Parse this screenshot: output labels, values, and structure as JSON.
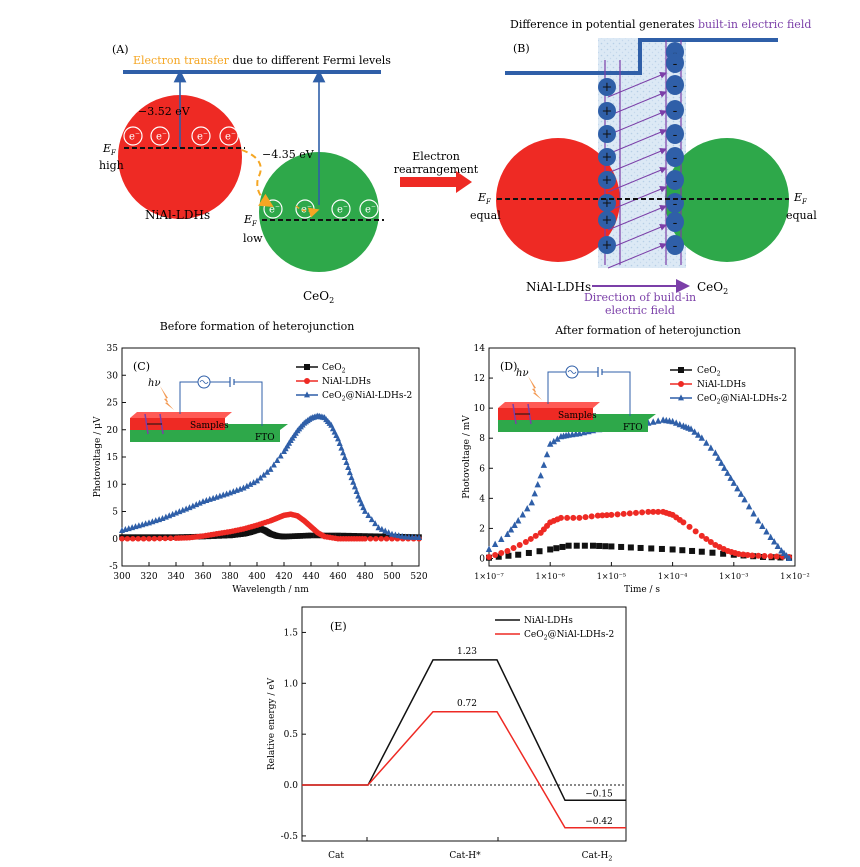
{
  "panels": {
    "A": {
      "tag": "(A)",
      "heading_orange": "Electron transfer",
      "heading_rest": " due to different Fermi levels",
      "nial_energy": "−3.52 eV",
      "ceo2_energy": "−4.35 eV",
      "ef_symbol": "E",
      "ef_sub": "F",
      "high": "high",
      "low": "low",
      "electron": "e",
      "electron_sup": "−",
      "nial_label": "NiAl-LDHs",
      "ceo2_label_main": "CeO",
      "ceo2_label_sub": "2",
      "caption": "Before formation of heterojunction"
    },
    "arrow": {
      "line1": "Electron",
      "line2": "rearrangement"
    },
    "B": {
      "tag": "(B)",
      "heading_plain": "Difference in potential generates ",
      "heading_purple": "built-in electric field",
      "equal": "equal",
      "plus": "+",
      "minus": "-",
      "nial_label": "NiAl-LDHs",
      "ceo2_label_main": "CeO",
      "ceo2_label_sub": "2",
      "field_line1": "Direction of build-in",
      "field_line2": "electric field",
      "caption": "After formation of heterojunction"
    },
    "C": {
      "tag": "(C)",
      "hv": "hν",
      "samples": "Samples",
      "fto": "FTO",
      "legend": [
        {
          "main": "CeO",
          "sub": "2",
          "rest": ""
        },
        {
          "main": "NiAl-LDHs",
          "sub": "",
          "rest": ""
        },
        {
          "main": "CeO",
          "sub": "2",
          "rest": "@NiAl-LDHs-2"
        }
      ]
    },
    "D": {
      "tag": "(D)",
      "hv": "hν",
      "samples": "Samples",
      "fto": "FTO",
      "legend": [
        {
          "main": "CeO",
          "sub": "2",
          "rest": ""
        },
        {
          "main": "NiAl-LDHs",
          "sub": "",
          "rest": ""
        },
        {
          "main": "CeO",
          "sub": "2",
          "rest": "@NiAl-LDHs-2"
        }
      ]
    },
    "E": {
      "tag": "(E)",
      "legend": [
        {
          "main": "NiAl-LDHs",
          "sub": "",
          "rest": ""
        },
        {
          "main": "CeO",
          "sub": "2",
          "rest": "@NiAl-LDHs-2"
        }
      ],
      "cat_labels": [
        {
          "main": "Cat",
          "sub": ""
        },
        {
          "main": "Cat-H*",
          "sub": ""
        },
        {
          "main": "Cat-H",
          "sub": "2"
        }
      ]
    }
  },
  "colors": {
    "red": "#ee2a24",
    "green": "#2ea84a",
    "blue": "#2f5fa8",
    "orange": "#f5a623",
    "purple": "#7b3fa8",
    "black": "#111111",
    "stripe": "#dce9f5"
  },
  "chart_data": [
    {
      "panel": "C",
      "type": "scatter",
      "xlabel": "Wavelength / nm",
      "ylabel": "Photovoltage / μV",
      "xlim": [
        300,
        520
      ],
      "ylim": [
        -5,
        35
      ],
      "xticks": [
        300,
        320,
        340,
        360,
        380,
        400,
        420,
        440,
        460,
        480,
        500,
        520
      ],
      "yticks": [
        -5,
        0,
        5,
        10,
        15,
        20,
        25,
        30,
        35
      ],
      "series": [
        {
          "name": "CeO2",
          "color": "#111111",
          "marker": "square",
          "x": [
            300,
            320,
            340,
            360,
            380,
            390,
            395,
            400,
            403,
            406,
            410,
            415,
            420,
            430,
            440,
            460,
            480,
            500,
            520
          ],
          "y": [
            0.3,
            0.3,
            0.3,
            0.4,
            0.6,
            0.9,
            1.2,
            1.6,
            1.8,
            1.5,
            0.9,
            0.5,
            0.4,
            0.5,
            0.6,
            0.6,
            0.5,
            0.4,
            0.3
          ]
        },
        {
          "name": "NiAl-LDHs",
          "color": "#ee2a24",
          "marker": "circle",
          "x": [
            300,
            320,
            340,
            350,
            360,
            370,
            380,
            390,
            400,
            410,
            415,
            420,
            425,
            430,
            435,
            440,
            445,
            450,
            460,
            470,
            480,
            500,
            520
          ],
          "y": [
            0,
            0,
            0.1,
            0.2,
            0.5,
            0.9,
            1.3,
            1.8,
            2.5,
            3.3,
            3.8,
            4.3,
            4.5,
            4.2,
            3.3,
            2.2,
            1.1,
            0.4,
            0,
            0,
            0,
            0,
            0
          ]
        },
        {
          "name": "CeO2@NiAl-LDHs-2",
          "color": "#2f5fa8",
          "marker": "triangle",
          "x": [
            300,
            310,
            320,
            330,
            340,
            350,
            360,
            370,
            380,
            390,
            400,
            410,
            420,
            425,
            430,
            435,
            440,
            445,
            450,
            455,
            460,
            465,
            470,
            475,
            480,
            490,
            500,
            510,
            520
          ],
          "y": [
            1.5,
            2.2,
            2.9,
            3.7,
            4.7,
            5.7,
            6.8,
            7.6,
            8.4,
            9.3,
            10.6,
            12.7,
            16.0,
            18.0,
            19.8,
            21.2,
            22.1,
            22.5,
            22.2,
            20.8,
            18.3,
            14.9,
            11.2,
            7.8,
            5.0,
            2.0,
            0.8,
            0.3,
            0.2
          ]
        }
      ]
    },
    {
      "panel": "D",
      "type": "scatter",
      "xlabel": "Time / s",
      "ylabel": "Photovoltage / mV",
      "xscale": "log",
      "xlim": [
        1e-07,
        0.01
      ],
      "ylim": [
        -0.5,
        14
      ],
      "xticks": [
        "1×10⁻⁷",
        "1×10⁻⁶",
        "1×10⁻⁵",
        "1×10⁻⁴",
        "1×10⁻³",
        "1×10⁻²"
      ],
      "yticks": [
        0,
        2,
        4,
        6,
        8,
        10,
        12,
        14
      ],
      "series": [
        {
          "name": "CeO2",
          "color": "#111111",
          "marker": "square",
          "x": [
            1e-07,
            3e-07,
            1e-06,
            2e-06,
            5e-06,
            1e-05,
            3e-05,
            0.0001,
            0.0003,
            0.001,
            0.003,
            0.008
          ],
          "y": [
            0.05,
            0.25,
            0.6,
            0.85,
            0.85,
            0.8,
            0.7,
            0.6,
            0.45,
            0.25,
            0.1,
            0.05
          ]
        },
        {
          "name": "NiAl-LDHs",
          "color": "#ee2a24",
          "marker": "circle",
          "x": [
            1e-07,
            2e-07,
            4e-07,
            7e-07,
            1e-06,
            1.5e-06,
            3e-06,
            6e-06,
            1e-05,
            2e-05,
            4e-05,
            7e-05,
            0.0001,
            0.00015,
            0.0003,
            0.0005,
            0.0008,
            0.0012,
            0.002,
            0.004,
            0.008
          ],
          "y": [
            0.1,
            0.5,
            1.1,
            1.7,
            2.4,
            2.7,
            2.7,
            2.85,
            2.9,
            3.0,
            3.1,
            3.1,
            2.9,
            2.4,
            1.5,
            0.9,
            0.5,
            0.3,
            0.2,
            0.15,
            0.1
          ]
        },
        {
          "name": "CeO2@NiAl-LDHs-2",
          "color": "#2f5fa8",
          "marker": "triangle",
          "x": [
            1e-07,
            2e-07,
            3e-07,
            5e-07,
            7e-07,
            1e-06,
            1.5e-06,
            2e-06,
            3e-06,
            5e-06,
            1e-05,
            2e-05,
            4e-05,
            7e-05,
            0.0001,
            0.00015,
            0.0002,
            0.0003,
            0.0005,
            0.0007,
            0.001,
            0.0015,
            0.0025,
            0.004,
            0.006,
            0.008
          ],
          "y": [
            0.6,
            1.6,
            2.5,
            3.7,
            5.5,
            7.6,
            8.1,
            8.2,
            8.3,
            8.5,
            8.7,
            8.8,
            9.0,
            9.2,
            9.1,
            8.8,
            8.6,
            8.0,
            7.0,
            6.0,
            5.0,
            3.9,
            2.5,
            1.4,
            0.5,
            0.0
          ]
        }
      ]
    },
    {
      "panel": "E",
      "type": "line",
      "ylabel": "Relative energy / eV",
      "categories": [
        "Cat",
        "Cat-H*",
        "Cat-H2"
      ],
      "ylim": [
        -0.55,
        1.75
      ],
      "yticks": [
        -0.5,
        0.0,
        0.5,
        1.0,
        1.5
      ],
      "baseline": 0.0,
      "series": [
        {
          "name": "NiAl-LDHs",
          "color": "#111111",
          "values": [
            0.0,
            1.23,
            -0.15
          ],
          "labels": [
            "",
            "1.23",
            "−0.15"
          ]
        },
        {
          "name": "CeO2@NiAl-LDHs-2",
          "color": "#ee2a24",
          "values": [
            0.0,
            0.72,
            -0.42
          ],
          "labels": [
            "",
            "0.72",
            "−0.42"
          ]
        }
      ]
    }
  ]
}
